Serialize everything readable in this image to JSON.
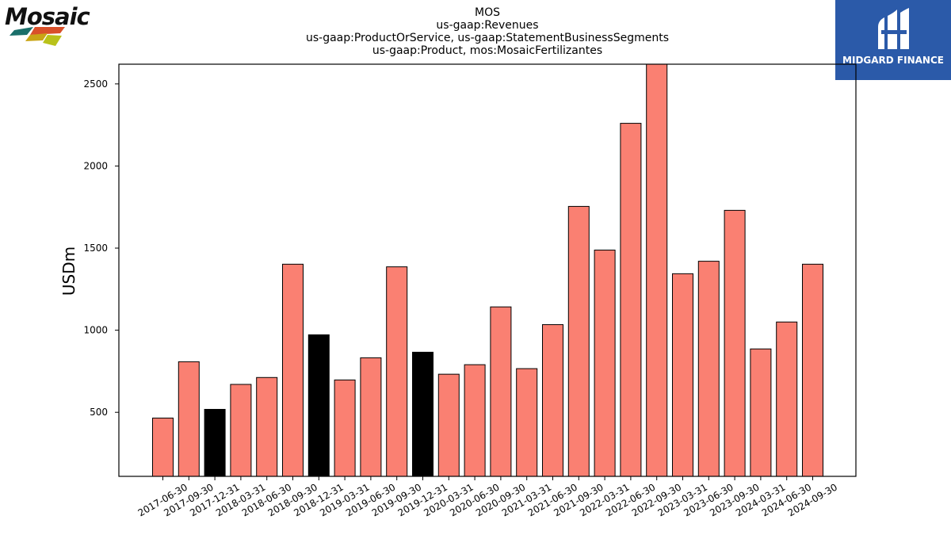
{
  "logos": {
    "left_brand": "Mosaic",
    "right_brand": "MIDGARD FINANCE"
  },
  "colors": {
    "bar_normal": "#fa8072",
    "bar_highlight": "#000000",
    "bar_edge": "#000000",
    "right_logo_bg": "#2b5aa9"
  },
  "chart_data": {
    "type": "bar",
    "title_lines": [
      "MOS",
      "us-gaap:Revenues",
      "us-gaap:ProductOrService, us-gaap:StatementBusinessSegments",
      "us-gaap:Product, mos:MosaicFertilizantes"
    ],
    "xlabel": "",
    "ylabel": "USDm",
    "ylim": [
      110,
      2620
    ],
    "yticks": [
      500,
      1000,
      1500,
      2000,
      2500
    ],
    "grid": false,
    "categories": [
      "2017-06-30",
      "2017-09-30",
      "2017-12-31",
      "2018-03-31",
      "2018-06-30",
      "2018-09-30",
      "2018-12-31",
      "2019-03-31",
      "2019-06-30",
      "2019-09-30",
      "2019-12-31",
      "2020-03-31",
      "2020-06-30",
      "2020-09-30",
      "2021-03-31",
      "2021-06-30",
      "2021-09-30",
      "2022-03-31",
      "2022-06-30",
      "2022-09-30",
      "2023-03-31",
      "2023-06-30",
      "2023-09-30",
      "2024-03-31",
      "2024-06-30",
      "2024-09-30"
    ],
    "values": [
      465,
      808,
      518,
      670,
      712,
      1402,
      972,
      697,
      832,
      1386,
      866,
      732,
      790,
      1142,
      766,
      1034,
      1754,
      1488,
      2260,
      2620,
      1344,
      1420,
      1730,
      886,
      1050,
      1402
    ],
    "highlighted": [
      false,
      false,
      true,
      false,
      false,
      false,
      true,
      false,
      false,
      false,
      true,
      false,
      false,
      false,
      false,
      false,
      false,
      false,
      false,
      false,
      false,
      false,
      false,
      false,
      false,
      false
    ]
  }
}
